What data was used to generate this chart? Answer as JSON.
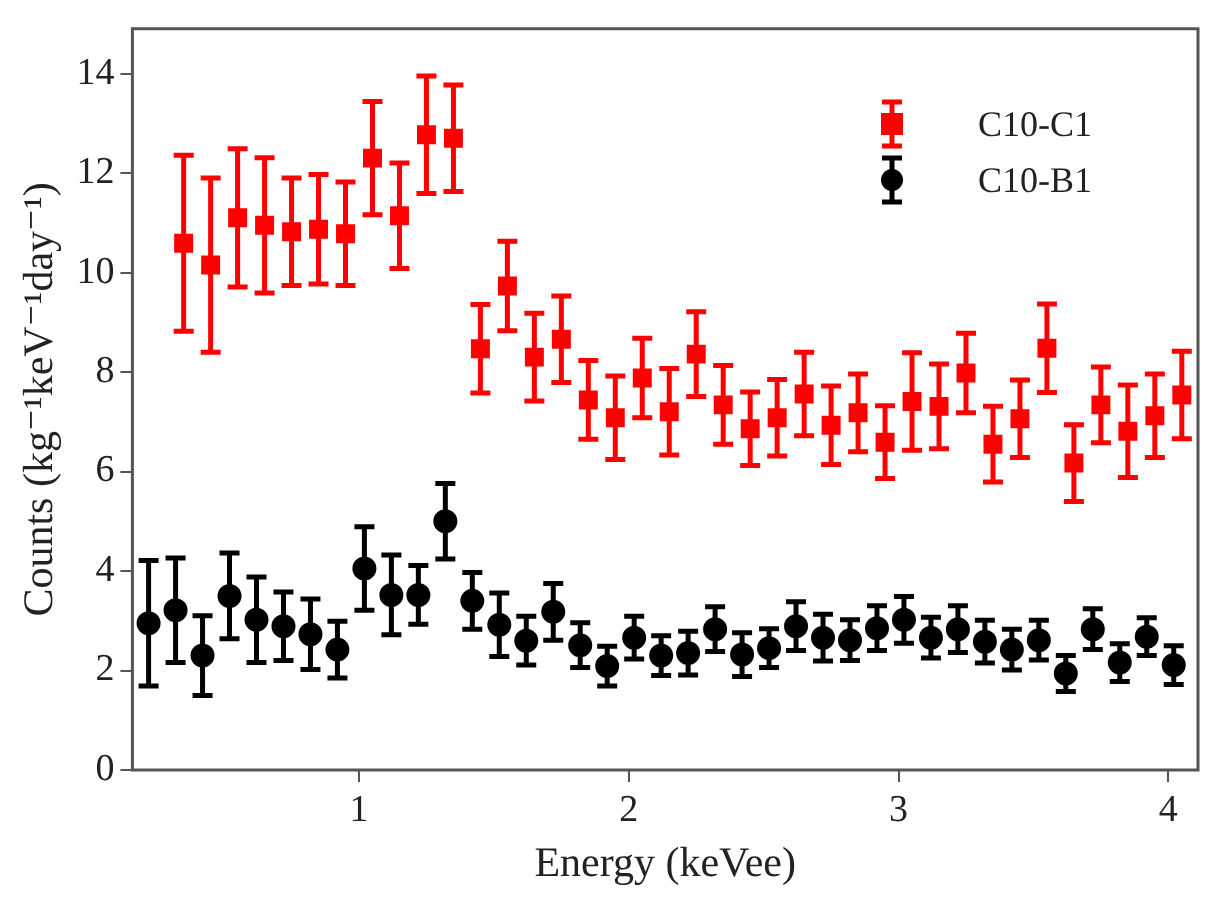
{
  "chart_data": {
    "type": "scatter",
    "xlabel": "Energy (keVee)",
    "ylabel": "Counts (kg⁻¹keV⁻¹day⁻¹)",
    "xlim": [
      0.16,
      4.11
    ],
    "ylim": [
      0,
      14.9
    ],
    "xticks": [
      1,
      2,
      3,
      4
    ],
    "yticks": [
      0,
      2,
      4,
      6,
      8,
      10,
      12,
      14
    ],
    "grid": false,
    "legend": "top right",
    "series": [
      {
        "name": "C10-C1",
        "color": "#ff0000",
        "marker": "square",
        "x": [
          0.35,
          0.45,
          0.55,
          0.65,
          0.75,
          0.85,
          0.95,
          1.05,
          1.15,
          1.25,
          1.35,
          1.45,
          1.55,
          1.65,
          1.75,
          1.85,
          1.95,
          2.05,
          2.15,
          2.25,
          2.35,
          2.45,
          2.55,
          2.65,
          2.75,
          2.85,
          2.95,
          3.05,
          3.15,
          3.25,
          3.35,
          3.45,
          3.55,
          3.65,
          3.75,
          3.85,
          3.95,
          4.05
        ],
        "values": [
          10.59,
          10.15,
          11.1,
          10.95,
          10.82,
          10.87,
          10.78,
          12.3,
          11.14,
          12.77,
          12.7,
          8.47,
          9.73,
          8.3,
          8.66,
          7.44,
          7.08,
          7.88,
          7.2,
          8.36,
          7.34,
          6.86,
          7.08,
          7.56,
          6.93,
          7.18,
          6.59,
          7.41,
          7.31,
          7.98,
          6.55,
          7.06,
          8.48,
          6.17,
          7.34,
          6.81,
          7.12,
          7.54
        ],
        "errors": [
          1.77,
          1.75,
          1.39,
          1.36,
          1.08,
          1.1,
          1.04,
          1.14,
          1.06,
          1.18,
          1.07,
          0.89,
          0.9,
          0.88,
          0.87,
          0.79,
          0.84,
          0.8,
          0.87,
          0.85,
          0.79,
          0.74,
          0.77,
          0.84,
          0.79,
          0.78,
          0.73,
          0.98,
          0.85,
          0.8,
          0.76,
          0.78,
          0.89,
          0.77,
          0.76,
          0.93,
          0.84,
          0.88
        ]
      },
      {
        "name": "C10-B1",
        "color": "#000000",
        "marker": "circle",
        "x": [
          0.22,
          0.32,
          0.42,
          0.52,
          0.62,
          0.72,
          0.82,
          0.92,
          1.02,
          1.12,
          1.22,
          1.32,
          1.42,
          1.52,
          1.62,
          1.72,
          1.82,
          1.92,
          2.02,
          2.12,
          2.22,
          2.32,
          2.42,
          2.52,
          2.62,
          2.72,
          2.82,
          2.92,
          3.02,
          3.12,
          3.22,
          3.32,
          3.42,
          3.52,
          3.62,
          3.72,
          3.82,
          3.92,
          4.02
        ],
        "values": [
          2.95,
          3.21,
          2.3,
          3.5,
          3.02,
          2.89,
          2.73,
          2.42,
          4.05,
          3.52,
          3.52,
          5.0,
          3.4,
          2.92,
          2.6,
          3.18,
          2.51,
          2.09,
          2.66,
          2.3,
          2.35,
          2.83,
          2.32,
          2.45,
          2.89,
          2.66,
          2.61,
          2.85,
          3.02,
          2.66,
          2.83,
          2.58,
          2.42,
          2.61,
          1.94,
          2.83,
          2.16,
          2.68,
          2.11
        ],
        "errors": [
          1.26,
          1.05,
          0.8,
          0.86,
          0.86,
          0.69,
          0.71,
          0.57,
          0.84,
          0.8,
          0.59,
          0.76,
          0.57,
          0.64,
          0.49,
          0.57,
          0.45,
          0.4,
          0.43,
          0.4,
          0.44,
          0.45,
          0.44,
          0.39,
          0.49,
          0.47,
          0.41,
          0.45,
          0.47,
          0.41,
          0.47,
          0.43,
          0.41,
          0.4,
          0.36,
          0.41,
          0.38,
          0.38,
          0.39
        ]
      }
    ]
  }
}
